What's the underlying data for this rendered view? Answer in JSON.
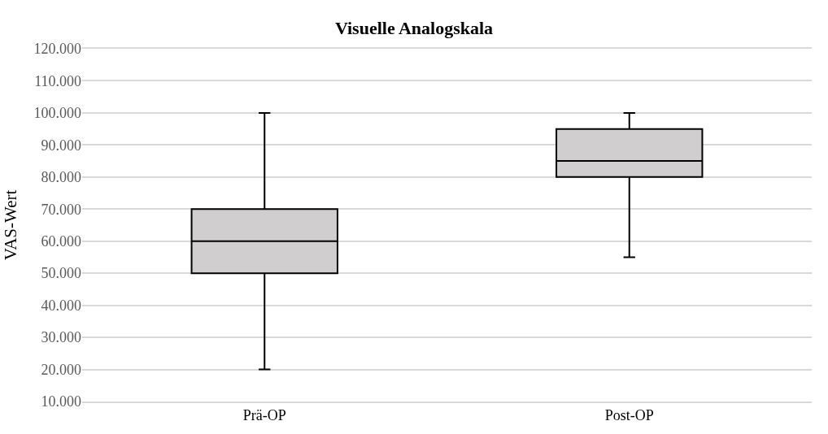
{
  "chart_data": {
    "type": "box",
    "title": "Visuelle Analogskala",
    "ylabel": "VAS-Wert",
    "categories": [
      "Prä-OP",
      "Post-OP"
    ],
    "boxes": [
      {
        "low": 20,
        "q1": 50,
        "median": 60,
        "q3": 70,
        "high": 100
      },
      {
        "low": 55,
        "q1": 80,
        "median": 85,
        "q3": 95,
        "high": 100
      }
    ],
    "color": "#d0cecf",
    "ylim": [
      10,
      120
    ],
    "yticks": [
      {
        "value": 10,
        "label": "10.000"
      },
      {
        "value": 20,
        "label": "20.000"
      },
      {
        "value": 30,
        "label": "30.000"
      },
      {
        "value": 40,
        "label": "40.000"
      },
      {
        "value": 50,
        "label": "50.000"
      },
      {
        "value": 60,
        "label": "60.000"
      },
      {
        "value": 70,
        "label": "70.000"
      },
      {
        "value": 80,
        "label": "80.000"
      },
      {
        "value": 90,
        "label": "90.000"
      },
      {
        "value": 100,
        "label": "100.000"
      },
      {
        "value": 110,
        "label": "110.000"
      },
      {
        "value": 120,
        "label": "120.000"
      }
    ],
    "grid": "y"
  }
}
